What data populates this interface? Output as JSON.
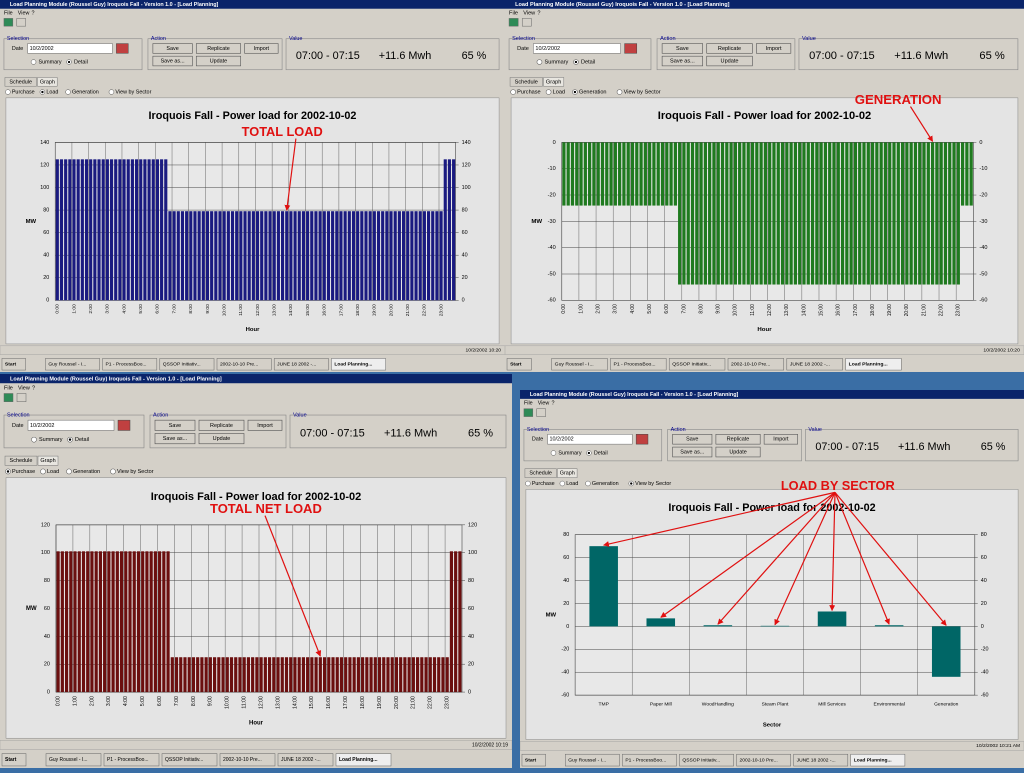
{
  "ui": {
    "app_title": "Load Planning Module (Roussel Guy) Iroquois Fall - Version 1.0 - [Load Planning]",
    "menu": [
      "File",
      "View",
      "?"
    ],
    "selection": "Selection",
    "date_label": "Date",
    "date": "10/2/2002",
    "summary": "Summary",
    "detail": "Detail",
    "action": "Action",
    "buttons": [
      "Save",
      "Replicate",
      "Import",
      "Save as...",
      "Update"
    ],
    "value": "Value",
    "time_range": "07:00 - 07:15",
    "energy": "+11.6 Mwh",
    "percent": "65 %",
    "tabs": [
      "Schedule",
      "Graph"
    ],
    "views": [
      "Purchase",
      "Load",
      "Generation",
      "View by Sector"
    ]
  },
  "taskbar": [
    "Start",
    "Guy Roussel - I...",
    "P1 - ProcessBoo...",
    "QSSOP Initiativ...",
    "2002-10-10 Pre...",
    "JUNE 18 2002 -...",
    "Load Planning..."
  ],
  "windows": [
    {
      "status": "10/2/2002 10:20",
      "selected": 1
    },
    {
      "status": "10/2/2002 10:20",
      "selected": 2
    },
    {
      "status": "10/2/2002 10:19",
      "selected": 0
    },
    {
      "status": "10/2/2002 10:21 AM",
      "selected": 3
    }
  ],
  "chart_data": [
    {
      "type": "bar",
      "title": "Iroquois Fall - Power load for 2002-10-02",
      "annotation": "TOTAL LOAD",
      "xlabel": "Hour",
      "ylabel": "MW",
      "color": "#1a1a80",
      "categories": [
        "0:00",
        null,
        null,
        null,
        "1:00",
        null,
        null,
        null,
        "2:00",
        null,
        null,
        null,
        "3:00",
        null,
        null,
        null,
        "4:00",
        null,
        null,
        null,
        "5:00",
        null,
        null,
        null,
        "6:00",
        null,
        null,
        null,
        "7:00",
        null,
        null,
        null,
        "8:00",
        null,
        null,
        null,
        "9:00",
        null,
        null,
        null,
        "10:00",
        null,
        null,
        null,
        "11:00",
        null,
        null,
        null,
        "12:00",
        null,
        null,
        null,
        "13:00",
        null,
        null,
        null,
        "14:00",
        null,
        null,
        null,
        "15:00",
        null,
        null,
        null,
        "16:00",
        null,
        null,
        null,
        "17:00",
        null,
        null,
        null,
        "18:00",
        null,
        null,
        null,
        "19:00",
        null,
        null,
        null,
        "20:00",
        null,
        null,
        null,
        "21:00",
        null,
        null,
        null,
        "22:00",
        null,
        null,
        null,
        "23:00",
        null,
        null,
        null
      ],
      "values": [
        125,
        125,
        125,
        125,
        125,
        125,
        125,
        125,
        125,
        125,
        125,
        125,
        125,
        125,
        125,
        125,
        125,
        125,
        125,
        125,
        125,
        125,
        125,
        125,
        125,
        125,
        125,
        79,
        79,
        79,
        79,
        79,
        79,
        79,
        79,
        79,
        79,
        79,
        79,
        79,
        79,
        79,
        79,
        79,
        79,
        79,
        79,
        79,
        79,
        79,
        79,
        79,
        79,
        79,
        79,
        79,
        79,
        79,
        79,
        79,
        79,
        79,
        79,
        79,
        79,
        79,
        79,
        79,
        79,
        79,
        79,
        79,
        79,
        79,
        79,
        79,
        79,
        79,
        79,
        79,
        79,
        79,
        79,
        79,
        79,
        79,
        79,
        79,
        79,
        79,
        79,
        79,
        79,
        125,
        125,
        125
      ],
      "ylim": [
        0,
        140
      ],
      "yticks": [
        0,
        20,
        40,
        60,
        80,
        100,
        120,
        140
      ],
      "y2lim": [
        0,
        140
      ],
      "y2ticks": [
        0,
        20,
        40,
        60,
        80,
        100,
        120,
        140
      ]
    },
    {
      "type": "bar",
      "title": "Iroquois Fall - Power load for 2002-10-02",
      "annotation": "GENERATION",
      "xlabel": "Hour",
      "ylabel": "MW",
      "color": "#1f7a1f",
      "categories": [
        "0:00",
        null,
        null,
        null,
        "1:00",
        null,
        null,
        null,
        "2:00",
        null,
        null,
        null,
        "3:00",
        null,
        null,
        null,
        "4:00",
        null,
        null,
        null,
        "5:00",
        null,
        null,
        null,
        "6:00",
        null,
        null,
        null,
        "7:00",
        null,
        null,
        null,
        "8:00",
        null,
        null,
        null,
        "9:00",
        null,
        null,
        null,
        "10:00",
        null,
        null,
        null,
        "11:00",
        null,
        null,
        null,
        "12:00",
        null,
        null,
        null,
        "13:00",
        null,
        null,
        null,
        "14:00",
        null,
        null,
        null,
        "15:00",
        null,
        null,
        null,
        "16:00",
        null,
        null,
        null,
        "17:00",
        null,
        null,
        null,
        "18:00",
        null,
        null,
        null,
        "19:00",
        null,
        null,
        null,
        "20:00",
        null,
        null,
        null,
        "21:00",
        null,
        null,
        null,
        "22:00",
        null,
        null,
        null,
        "23:00",
        null,
        null,
        null
      ],
      "values": [
        -24,
        -24,
        -24,
        -24,
        -24,
        -24,
        -24,
        -24,
        -24,
        -24,
        -24,
        -24,
        -24,
        -24,
        -24,
        -24,
        -24,
        -24,
        -24,
        -24,
        -24,
        -24,
        -24,
        -24,
        -24,
        -24,
        -24,
        -54,
        -54,
        -54,
        -54,
        -54,
        -54,
        -54,
        -54,
        -54,
        -54,
        -54,
        -54,
        -54,
        -54,
        -54,
        -54,
        -54,
        -54,
        -54,
        -54,
        -54,
        -54,
        -54,
        -54,
        -54,
        -54,
        -54,
        -54,
        -54,
        -54,
        -54,
        -54,
        -54,
        -54,
        -54,
        -54,
        -54,
        -54,
        -54,
        -54,
        -54,
        -54,
        -54,
        -54,
        -54,
        -54,
        -54,
        -54,
        -54,
        -54,
        -54,
        -54,
        -54,
        -54,
        -54,
        -54,
        -54,
        -54,
        -54,
        -54,
        -54,
        -54,
        -54,
        -54,
        -54,
        -54,
        -24,
        -24,
        -24
      ],
      "ylim": [
        -60,
        0
      ],
      "yticks": [
        -60,
        -50,
        -40,
        -30,
        -20,
        -10,
        0
      ],
      "y2lim": [
        -60,
        0
      ],
      "y2ticks": [
        -60,
        -50,
        -40,
        -30,
        -20,
        -10,
        0
      ]
    },
    {
      "type": "bar",
      "title": "Iroquois Fall - Power load for 2002-10-02",
      "annotation": "TOTAL NET LOAD",
      "xlabel": "Hour",
      "ylabel": "MW",
      "color": "#6b0f0f",
      "categories": [
        "0:00",
        null,
        null,
        null,
        "1:00",
        null,
        null,
        null,
        "2:00",
        null,
        null,
        null,
        "3:00",
        null,
        null,
        null,
        "4:00",
        null,
        null,
        null,
        "5:00",
        null,
        null,
        null,
        "6:00",
        null,
        null,
        null,
        "7:00",
        null,
        null,
        null,
        "8:00",
        null,
        null,
        null,
        "9:00",
        null,
        null,
        null,
        "10:00",
        null,
        null,
        null,
        "11:00",
        null,
        null,
        null,
        "12:00",
        null,
        null,
        null,
        "13:00",
        null,
        null,
        null,
        "14:00",
        null,
        null,
        null,
        "15:00",
        null,
        null,
        null,
        "16:00",
        null,
        null,
        null,
        "17:00",
        null,
        null,
        null,
        "18:00",
        null,
        null,
        null,
        "19:00",
        null,
        null,
        null,
        "20:00",
        null,
        null,
        null,
        "21:00",
        null,
        null,
        null,
        "22:00",
        null,
        null,
        null,
        "23:00",
        null,
        null,
        null
      ],
      "values": [
        101,
        101,
        101,
        101,
        101,
        101,
        101,
        101,
        101,
        101,
        101,
        101,
        101,
        101,
        101,
        101,
        101,
        101,
        101,
        101,
        101,
        101,
        101,
        101,
        101,
        101,
        101,
        25,
        25,
        25,
        25,
        25,
        25,
        25,
        25,
        25,
        25,
        25,
        25,
        25,
        25,
        25,
        25,
        25,
        25,
        25,
        25,
        25,
        25,
        25,
        25,
        25,
        25,
        25,
        25,
        25,
        25,
        25,
        25,
        25,
        25,
        25,
        25,
        25,
        25,
        25,
        25,
        25,
        25,
        25,
        25,
        25,
        25,
        25,
        25,
        25,
        25,
        25,
        25,
        25,
        25,
        25,
        25,
        25,
        25,
        25,
        25,
        25,
        25,
        25,
        25,
        25,
        25,
        101,
        101,
        101
      ],
      "ylim": [
        0,
        120
      ],
      "yticks": [
        0,
        20,
        40,
        60,
        80,
        100,
        120
      ],
      "y2lim": [
        0,
        120
      ],
      "y2ticks": [
        0,
        20,
        40,
        60,
        80,
        100,
        120
      ]
    },
    {
      "type": "bar",
      "title": "Iroquois Fall - Power load for 2002-10-02",
      "annotation": "LOAD BY SECTOR",
      "xlabel": "Sector",
      "ylabel": "MW",
      "color": "#006666",
      "categories": [
        "TMP",
        "Paper Mill",
        "WoodHandling",
        "Steam Plant",
        "Mill Services",
        "Environmental",
        "Generation"
      ],
      "values": [
        70,
        7,
        1,
        0.5,
        13,
        1,
        -44
      ],
      "ylim": [
        -60,
        80
      ],
      "yticks": [
        -60,
        -40,
        -20,
        0,
        20,
        40,
        60,
        80
      ],
      "y2lim": [
        -60,
        80
      ],
      "y2ticks": [
        -60,
        -40,
        -20,
        0,
        20,
        40,
        60,
        80
      ]
    }
  ]
}
